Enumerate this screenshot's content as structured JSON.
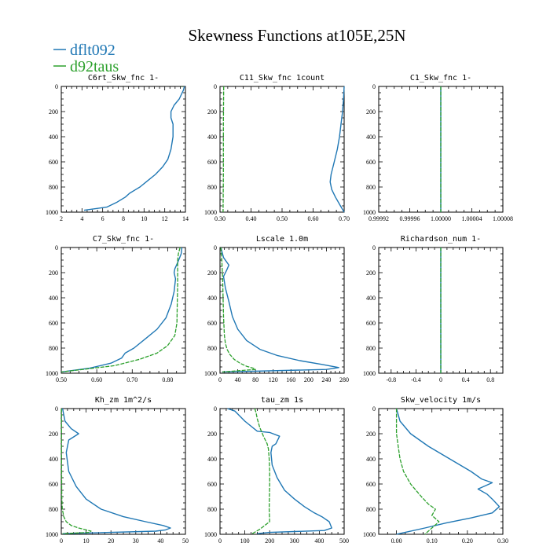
{
  "figure": {
    "title": "Skewness Functions at105E,25N",
    "legend": [
      {
        "label": "dflt092",
        "color": "#1f77b4"
      },
      {
        "label": "d92taus",
        "color": "#2ca02c"
      }
    ]
  },
  "chart_data": [
    {
      "type": "line",
      "title": "C6rt_Skw_fnc   1-",
      "xlim": [
        2,
        14
      ],
      "xticks": [
        2,
        4,
        6,
        8,
        10,
        12,
        14
      ],
      "xtick_labels": [
        "2",
        "4",
        "6",
        "8",
        "10",
        "12",
        "14"
      ],
      "ylim": [
        0,
        1000
      ],
      "yticks": [
        0,
        200,
        400,
        600,
        800,
        1000
      ],
      "y_inverted": true,
      "series": [
        {
          "name": "dflt092",
          "color": "#1f77b4",
          "x": [
            13.9,
            13.8,
            13.4,
            12.9,
            12.6,
            12.6,
            12.8,
            12.8,
            12.6,
            12.3,
            11.8,
            11.1,
            10.2,
            9.6,
            9.2,
            8.6,
            8.2,
            7.4,
            6.4,
            4.2
          ],
          "y": [
            0,
            30,
            100,
            150,
            200,
            250,
            300,
            400,
            500,
            580,
            640,
            700,
            760,
            800,
            820,
            850,
            880,
            920,
            960,
            985
          ]
        },
        {
          "name": "d92taus",
          "color": "#2ca02c",
          "x": [
            13.7,
            13.7
          ],
          "y": [
            0,
            5
          ]
        }
      ]
    },
    {
      "type": "line",
      "title": "C11_Skw_fnc   1count",
      "xlim": [
        0.3,
        0.7
      ],
      "xticks": [
        0.3,
        0.4,
        0.5,
        0.6,
        0.7
      ],
      "xtick_labels": [
        "0.30",
        "0.40",
        "0.50",
        "0.60",
        "0.70"
      ],
      "ylim": [
        0,
        1000
      ],
      "yticks": [
        0,
        200,
        400,
        600,
        800,
        1000
      ],
      "y_inverted": true,
      "series": [
        {
          "name": "dflt092",
          "color": "#1f77b4",
          "x": [
            0.7,
            0.698,
            0.695,
            0.69,
            0.685,
            0.678,
            0.668,
            0.658,
            0.655,
            0.66,
            0.672,
            0.688,
            0.7
          ],
          "y": [
            0,
            100,
            200,
            300,
            400,
            500,
            600,
            700,
            760,
            820,
            880,
            950,
            1000
          ]
        },
        {
          "name": "d92taus",
          "color": "#2ca02c",
          "x": [
            0.312,
            0.311,
            0.311,
            0.31
          ],
          "y": [
            0,
            300,
            700,
            1000
          ]
        }
      ]
    },
    {
      "type": "line",
      "title": "C1_Skw_fnc   1-",
      "xlim": [
        0.99992,
        1.00008
      ],
      "xticks": [
        0.99992,
        0.99996,
        1.0,
        1.00004,
        1.00008
      ],
      "xtick_labels": [
        "0.99992",
        "0.99996",
        "1.00000",
        "1.00004",
        "1.00008"
      ],
      "ylim": [
        0,
        1000
      ],
      "yticks": [
        0,
        200,
        400,
        600,
        800,
        1000
      ],
      "y_inverted": true,
      "series": [
        {
          "name": "dflt092",
          "color": "#1f77b4",
          "x": [
            1.0,
            1.0
          ],
          "y": [
            0,
            1000
          ]
        },
        {
          "name": "d92taus",
          "color": "#2ca02c",
          "x": [
            1.0,
            1.0
          ],
          "y": [
            0,
            1000
          ]
        }
      ]
    },
    {
      "type": "line",
      "title": "C7_Skw_fnc   1-",
      "xlim": [
        0.5,
        0.85
      ],
      "xticks": [
        0.5,
        0.6,
        0.7,
        0.8
      ],
      "xtick_labels": [
        "0.50",
        "0.60",
        "0.70",
        "0.80"
      ],
      "ylim": [
        0,
        1000
      ],
      "yticks": [
        0,
        200,
        400,
        600,
        800,
        1000
      ],
      "y_inverted": true,
      "series": [
        {
          "name": "dflt092",
          "color": "#1f77b4",
          "x": [
            0.84,
            0.838,
            0.828,
            0.82,
            0.818,
            0.822,
            0.818,
            0.81,
            0.795,
            0.77,
            0.74,
            0.705,
            0.68,
            0.67,
            0.64,
            0.58,
            0.5
          ],
          "y": [
            0,
            50,
            120,
            170,
            200,
            250,
            350,
            450,
            560,
            650,
            720,
            800,
            840,
            880,
            920,
            960,
            990
          ]
        },
        {
          "name": "d92taus",
          "color": "#2ca02c",
          "x": [
            0.835,
            0.83,
            0.828,
            0.828,
            0.828,
            0.827,
            0.826,
            0.82,
            0.8,
            0.77,
            0.72,
            0.65,
            0.5
          ],
          "y": [
            0,
            50,
            100,
            200,
            300,
            450,
            600,
            700,
            780,
            840,
            890,
            940,
            990
          ]
        }
      ]
    },
    {
      "type": "line",
      "title": "Lscale   1.0m",
      "xlim": [
        0,
        280
      ],
      "xticks": [
        0,
        40,
        80,
        120,
        160,
        200,
        240,
        280
      ],
      "xtick_labels": [
        "0",
        "40",
        "80",
        "120",
        "160",
        "200",
        "240",
        "280"
      ],
      "ylim": [
        0,
        1000
      ],
      "yticks": [
        0,
        200,
        400,
        600,
        800,
        1000
      ],
      "y_inverted": true,
      "series": [
        {
          "name": "dflt092",
          "color": "#1f77b4",
          "x": [
            2,
            8,
            20,
            15,
            8,
            12,
            20,
            28,
            40,
            60,
            90,
            130,
            180,
            230,
            268,
            240,
            5
          ],
          "y": [
            0,
            80,
            140,
            180,
            230,
            320,
            430,
            550,
            650,
            740,
            810,
            860,
            900,
            930,
            955,
            970,
            990
          ]
        },
        {
          "name": "d92taus",
          "color": "#2ca02c",
          "x": [
            2,
            4,
            6,
            7,
            8,
            10,
            12,
            16,
            22,
            32,
            45,
            60,
            75,
            80,
            5
          ],
          "y": [
            0,
            100,
            250,
            400,
            550,
            700,
            760,
            810,
            850,
            890,
            920,
            945,
            960,
            970,
            990
          ]
        }
      ]
    },
    {
      "type": "line",
      "title": "Richardson_num   1-",
      "xlim": [
        -1,
        1
      ],
      "xticks": [
        -0.8,
        -0.4,
        0,
        0.4,
        0.8
      ],
      "xtick_labels": [
        "-0.8",
        "-0.4",
        "0",
        "0.4",
        "0.8"
      ],
      "ylim": [
        0,
        1000
      ],
      "yticks": [
        0,
        200,
        400,
        600,
        800,
        1000
      ],
      "y_inverted": true,
      "series": [
        {
          "name": "dflt092",
          "color": "#1f77b4",
          "x": [
            0,
            0
          ],
          "y": [
            0,
            1000
          ]
        },
        {
          "name": "d92taus",
          "color": "#2ca02c",
          "x": [
            0,
            0
          ],
          "y": [
            0,
            1000
          ]
        }
      ]
    },
    {
      "type": "line",
      "title": "Kh_zm   1m^2/s",
      "xlim": [
        0,
        50
      ],
      "xticks": [
        0,
        10,
        20,
        30,
        40,
        50
      ],
      "xtick_labels": [
        "0",
        "10",
        "20",
        "30",
        "40",
        "50"
      ],
      "ylim": [
        0,
        1000
      ],
      "yticks": [
        0,
        200,
        400,
        600,
        800,
        1000
      ],
      "y_inverted": true,
      "series": [
        {
          "name": "dflt092",
          "color": "#1f77b4",
          "x": [
            0.5,
            1.5,
            4,
            7,
            3,
            2,
            3,
            6,
            10,
            16,
            25,
            34,
            41,
            44,
            42,
            38,
            0.5
          ],
          "y": [
            0,
            100,
            160,
            200,
            250,
            350,
            500,
            620,
            720,
            800,
            860,
            900,
            930,
            950,
            965,
            975,
            995
          ]
        },
        {
          "name": "d92taus",
          "color": "#2ca02c",
          "x": [
            0.1,
            0.1,
            0.2,
            0.4,
            1,
            2,
            4,
            7,
            10,
            12,
            11,
            0.5
          ],
          "y": [
            0,
            400,
            700,
            800,
            860,
            900,
            930,
            950,
            965,
            975,
            985,
            995
          ]
        }
      ]
    },
    {
      "type": "line",
      "title": "tau_zm   1s",
      "xlim": [
        0,
        500
      ],
      "xticks": [
        0,
        100,
        200,
        300,
        400,
        500
      ],
      "xtick_labels": [
        "0",
        "100",
        "200",
        "300",
        "400",
        "500"
      ],
      "ylim": [
        0,
        1000
      ],
      "yticks": [
        0,
        200,
        400,
        600,
        800,
        1000
      ],
      "y_inverted": true,
      "series": [
        {
          "name": "dflt092",
          "color": "#1f77b4",
          "x": [
            30,
            60,
            80,
            100,
            150,
            200,
            240,
            225,
            210,
            205,
            210,
            230,
            260,
            300,
            340,
            380,
            410,
            440,
            450,
            420,
            200,
            150
          ],
          "y": [
            0,
            20,
            60,
            100,
            180,
            190,
            220,
            280,
            300,
            350,
            450,
            550,
            650,
            720,
            780,
            830,
            860,
            900,
            950,
            970,
            985,
            995
          ]
        },
        {
          "name": "d92taus",
          "color": "#2ca02c",
          "x": [
            140,
            145,
            150,
            160,
            175,
            190,
            195,
            198,
            200,
            200,
            199,
            198,
            200,
            160,
            130
          ],
          "y": [
            0,
            30,
            80,
            150,
            220,
            280,
            320,
            400,
            500,
            600,
            700,
            800,
            900,
            960,
            995
          ]
        }
      ]
    },
    {
      "type": "line",
      "title": "Skw_velocity   1m/s",
      "xlim": [
        -0.05,
        0.3
      ],
      "xticks": [
        0,
        0.1,
        0.2,
        0.3
      ],
      "xtick_labels": [
        "0.00",
        "0.10",
        "0.20",
        "0.30"
      ],
      "ylim": [
        0,
        1000
      ],
      "yticks": [
        0,
        200,
        400,
        600,
        800,
        1000
      ],
      "y_inverted": true,
      "series": [
        {
          "name": "dflt092",
          "color": "#1f77b4",
          "x": [
            0.0,
            0.01,
            0.04,
            0.09,
            0.15,
            0.21,
            0.24,
            0.27,
            0.23,
            0.255,
            0.27,
            0.29,
            0.27,
            0.21,
            0.14,
            0.08,
            0.0
          ],
          "y": [
            0,
            100,
            200,
            300,
            400,
            500,
            560,
            590,
            640,
            680,
            720,
            780,
            830,
            870,
            910,
            950,
            1000
          ]
        },
        {
          "name": "d92taus",
          "color": "#2ca02c",
          "x": [
            0.0,
            0.0,
            0.005,
            0.01,
            0.02,
            0.04,
            0.07,
            0.09,
            0.11,
            0.1,
            0.12,
            0.1,
            0.08
          ],
          "y": [
            0,
            200,
            300,
            400,
            500,
            600,
            700,
            760,
            800,
            850,
            900,
            950,
            1000
          ]
        }
      ]
    }
  ]
}
